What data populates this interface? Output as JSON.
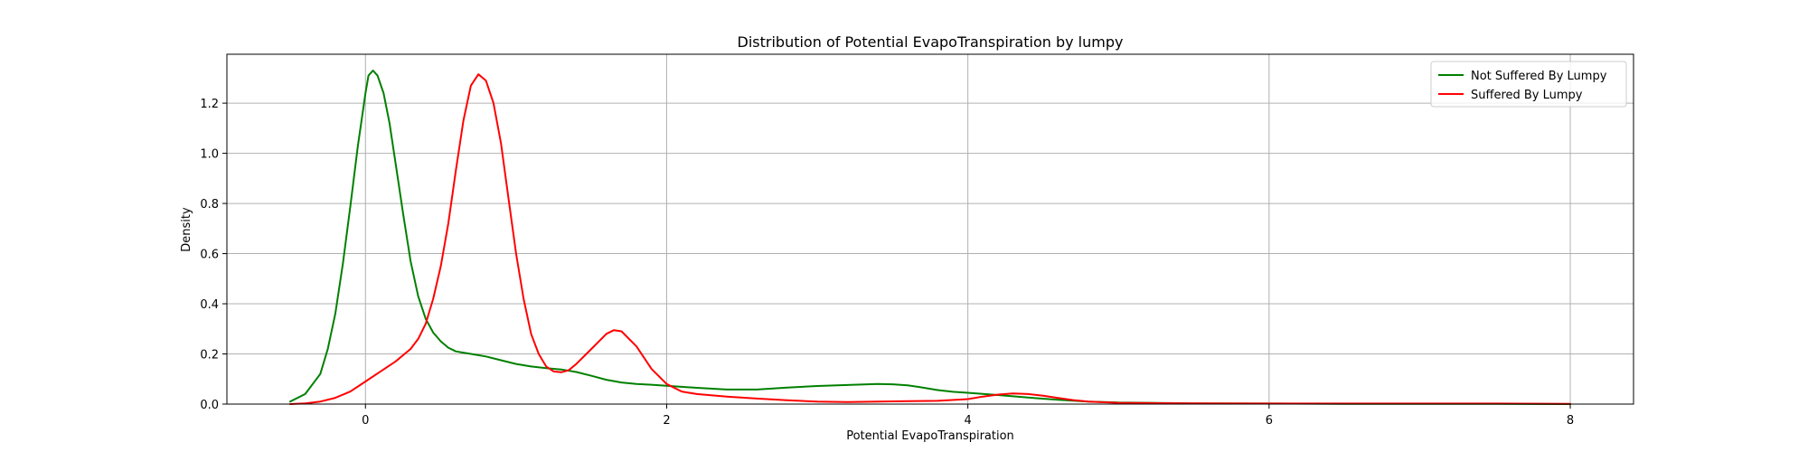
{
  "chart_data": {
    "type": "line",
    "title": "Distribution of Potential EvapoTranspiration by lumpy",
    "xlabel": "Potential EvapoTranspiration",
    "ylabel": "Density",
    "xlim": [
      -0.92,
      8.42
    ],
    "ylim": [
      0.0,
      1.395
    ],
    "x_ticks": [
      0,
      2,
      4,
      6,
      8
    ],
    "x_tick_labels": [
      "0",
      "2",
      "4",
      "6",
      "8"
    ],
    "y_ticks": [
      0.0,
      0.2,
      0.4,
      0.6,
      0.8,
      1.0,
      1.2
    ],
    "y_tick_labels": [
      "0.0",
      "0.2",
      "0.4",
      "0.6",
      "0.8",
      "1.0",
      "1.2"
    ],
    "grid": true,
    "legend_position": "top-right",
    "series": [
      {
        "name": "Not Suffered By Lumpy",
        "color": "#008000",
        "points": [
          [
            -0.5,
            0.01
          ],
          [
            -0.4,
            0.04
          ],
          [
            -0.3,
            0.12
          ],
          [
            -0.25,
            0.22
          ],
          [
            -0.2,
            0.36
          ],
          [
            -0.15,
            0.56
          ],
          [
            -0.1,
            0.79
          ],
          [
            -0.05,
            1.03
          ],
          [
            0.0,
            1.24
          ],
          [
            0.02,
            1.31
          ],
          [
            0.05,
            1.33
          ],
          [
            0.08,
            1.31
          ],
          [
            0.12,
            1.24
          ],
          [
            0.16,
            1.12
          ],
          [
            0.2,
            0.96
          ],
          [
            0.25,
            0.76
          ],
          [
            0.3,
            0.57
          ],
          [
            0.35,
            0.43
          ],
          [
            0.4,
            0.34
          ],
          [
            0.45,
            0.285
          ],
          [
            0.5,
            0.25
          ],
          [
            0.55,
            0.225
          ],
          [
            0.6,
            0.21
          ],
          [
            0.7,
            0.2
          ],
          [
            0.8,
            0.19
          ],
          [
            0.9,
            0.175
          ],
          [
            1.0,
            0.16
          ],
          [
            1.1,
            0.15
          ],
          [
            1.2,
            0.143
          ],
          [
            1.3,
            0.138
          ],
          [
            1.4,
            0.128
          ],
          [
            1.5,
            0.113
          ],
          [
            1.6,
            0.097
          ],
          [
            1.7,
            0.086
          ],
          [
            1.8,
            0.08
          ],
          [
            1.9,
            0.077
          ],
          [
            2.0,
            0.073
          ],
          [
            2.2,
            0.065
          ],
          [
            2.4,
            0.058
          ],
          [
            2.6,
            0.058
          ],
          [
            2.8,
            0.066
          ],
          [
            3.0,
            0.072
          ],
          [
            3.2,
            0.076
          ],
          [
            3.4,
            0.08
          ],
          [
            3.5,
            0.079
          ],
          [
            3.6,
            0.075
          ],
          [
            3.7,
            0.066
          ],
          [
            3.8,
            0.056
          ],
          [
            3.9,
            0.049
          ],
          [
            4.0,
            0.045
          ],
          [
            4.2,
            0.036
          ],
          [
            4.4,
            0.026
          ],
          [
            4.6,
            0.017
          ],
          [
            4.8,
            0.01
          ],
          [
            5.0,
            0.006
          ],
          [
            5.5,
            0.003
          ],
          [
            6.0,
            0.002
          ],
          [
            6.5,
            0.001
          ],
          [
            7.0,
            0.001
          ],
          [
            7.5,
            0.001
          ],
          [
            8.0,
            0.0
          ]
        ]
      },
      {
        "name": "Suffered By Lumpy",
        "color": "#ff0000",
        "points": [
          [
            -0.5,
            0.0
          ],
          [
            -0.4,
            0.003
          ],
          [
            -0.3,
            0.01
          ],
          [
            -0.2,
            0.025
          ],
          [
            -0.1,
            0.05
          ],
          [
            0.0,
            0.09
          ],
          [
            0.1,
            0.13
          ],
          [
            0.2,
            0.17
          ],
          [
            0.3,
            0.22
          ],
          [
            0.35,
            0.26
          ],
          [
            0.4,
            0.32
          ],
          [
            0.45,
            0.42
          ],
          [
            0.5,
            0.55
          ],
          [
            0.55,
            0.72
          ],
          [
            0.6,
            0.93
          ],
          [
            0.65,
            1.13
          ],
          [
            0.7,
            1.27
          ],
          [
            0.75,
            1.315
          ],
          [
            0.8,
            1.29
          ],
          [
            0.85,
            1.2
          ],
          [
            0.9,
            1.04
          ],
          [
            0.95,
            0.82
          ],
          [
            1.0,
            0.6
          ],
          [
            1.05,
            0.42
          ],
          [
            1.1,
            0.28
          ],
          [
            1.15,
            0.2
          ],
          [
            1.2,
            0.15
          ],
          [
            1.25,
            0.13
          ],
          [
            1.3,
            0.127
          ],
          [
            1.35,
            0.135
          ],
          [
            1.4,
            0.16
          ],
          [
            1.5,
            0.22
          ],
          [
            1.6,
            0.28
          ],
          [
            1.65,
            0.295
          ],
          [
            1.7,
            0.29
          ],
          [
            1.8,
            0.23
          ],
          [
            1.9,
            0.14
          ],
          [
            2.0,
            0.08
          ],
          [
            2.1,
            0.05
          ],
          [
            2.2,
            0.04
          ],
          [
            2.4,
            0.03
          ],
          [
            2.6,
            0.022
          ],
          [
            2.8,
            0.015
          ],
          [
            3.0,
            0.01
          ],
          [
            3.2,
            0.008
          ],
          [
            3.4,
            0.01
          ],
          [
            3.6,
            0.012
          ],
          [
            3.8,
            0.013
          ],
          [
            4.0,
            0.02
          ],
          [
            4.1,
            0.03
          ],
          [
            4.2,
            0.038
          ],
          [
            4.3,
            0.042
          ],
          [
            4.4,
            0.04
          ],
          [
            4.5,
            0.033
          ],
          [
            4.6,
            0.024
          ],
          [
            4.7,
            0.016
          ],
          [
            4.8,
            0.01
          ],
          [
            5.0,
            0.005
          ],
          [
            5.5,
            0.003
          ],
          [
            6.0,
            0.002
          ],
          [
            7.0,
            0.002
          ],
          [
            7.5,
            0.002
          ],
          [
            8.0,
            0.001
          ]
        ]
      }
    ]
  }
}
